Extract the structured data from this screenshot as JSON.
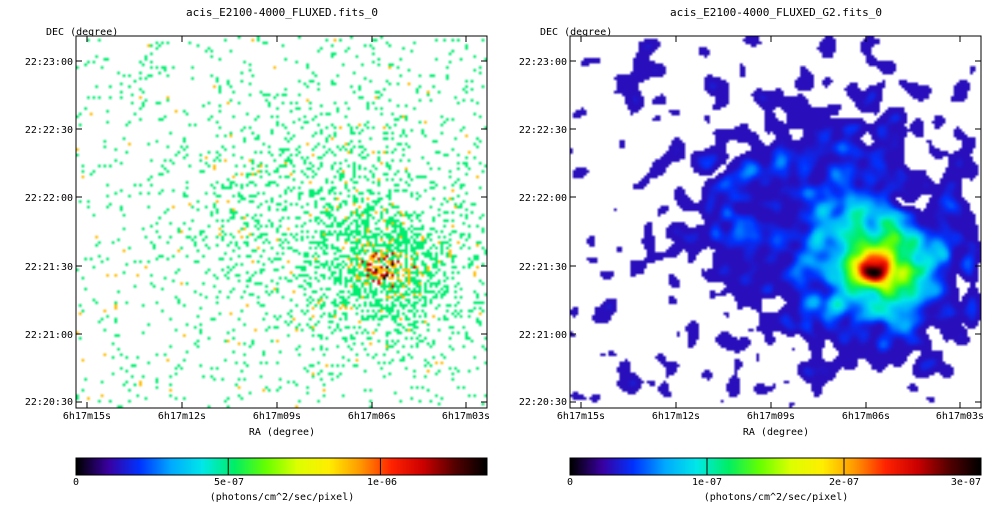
{
  "colors": {
    "scale": [
      "#000000",
      "#3a00a0",
      "#0033ff",
      "#00aaff",
      "#00e8e8",
      "#00ee66",
      "#66ff00",
      "#ddff00",
      "#ffee00",
      "#ff9900",
      "#ff2200",
      "#cc0000",
      "#550000",
      "#000000"
    ],
    "frame": "#000000",
    "background": "#ffffff"
  },
  "chart_data": [
    {
      "type": "heatmap",
      "title": "acis_E2100-4000_FLUXED.fits_0",
      "xlabel": "RA (degree)",
      "ylabel": "DEC (degree)",
      "x_ticks": [
        "6h17m15s",
        "6h17m12s",
        "6h17m09s",
        "6h17m06s",
        "6h17m03s"
      ],
      "y_ticks": [
        "22:23:00",
        "22:22:30",
        "22:22:00",
        "22:21:30",
        "22:21:00",
        "22:20:30"
      ],
      "appearance": "sparse single-pixel counts, concentrated toward a source near 6h17m05s +22:21:30",
      "colorbar": {
        "label": "(photons/cm^2/sec/pixel)",
        "range": [
          0,
          1.35e-06
        ],
        "ticks": [
          "0",
          "5e-07",
          "1e-06"
        ],
        "tick_values": [
          0,
          5e-07,
          1e-06
        ]
      },
      "peak": {
        "ra": "6h17m05s",
        "dec": "22:21:30"
      }
    },
    {
      "type": "heatmap",
      "title": "acis_E2100-4000_FLUXED_G2.fits_0",
      "xlabel": "RA (degree)",
      "ylabel": "DEC (degree)",
      "x_ticks": [
        "6h17m15s",
        "6h17m12s",
        "6h17m09s",
        "6h17m06s",
        "6h17m03s"
      ],
      "y_ticks": [
        "22:23:00",
        "22:22:30",
        "22:22:00",
        "22:21:30",
        "22:21:00",
        "22:20:30"
      ],
      "appearance": "gaussian-smoothed (sigma 2) version of the same image; bright extended source near 6h17m05s +22:21:30",
      "colorbar": {
        "label": "(photons/cm^2/sec/pixel)",
        "range": [
          0,
          3e-07
        ],
        "ticks": [
          "0",
          "1e-07",
          "2e-07",
          "3e-07"
        ],
        "tick_values": [
          0,
          1e-07,
          2e-07,
          3e-07
        ]
      },
      "peak": {
        "ra": "6h17m05s",
        "dec": "22:21:30"
      }
    }
  ]
}
